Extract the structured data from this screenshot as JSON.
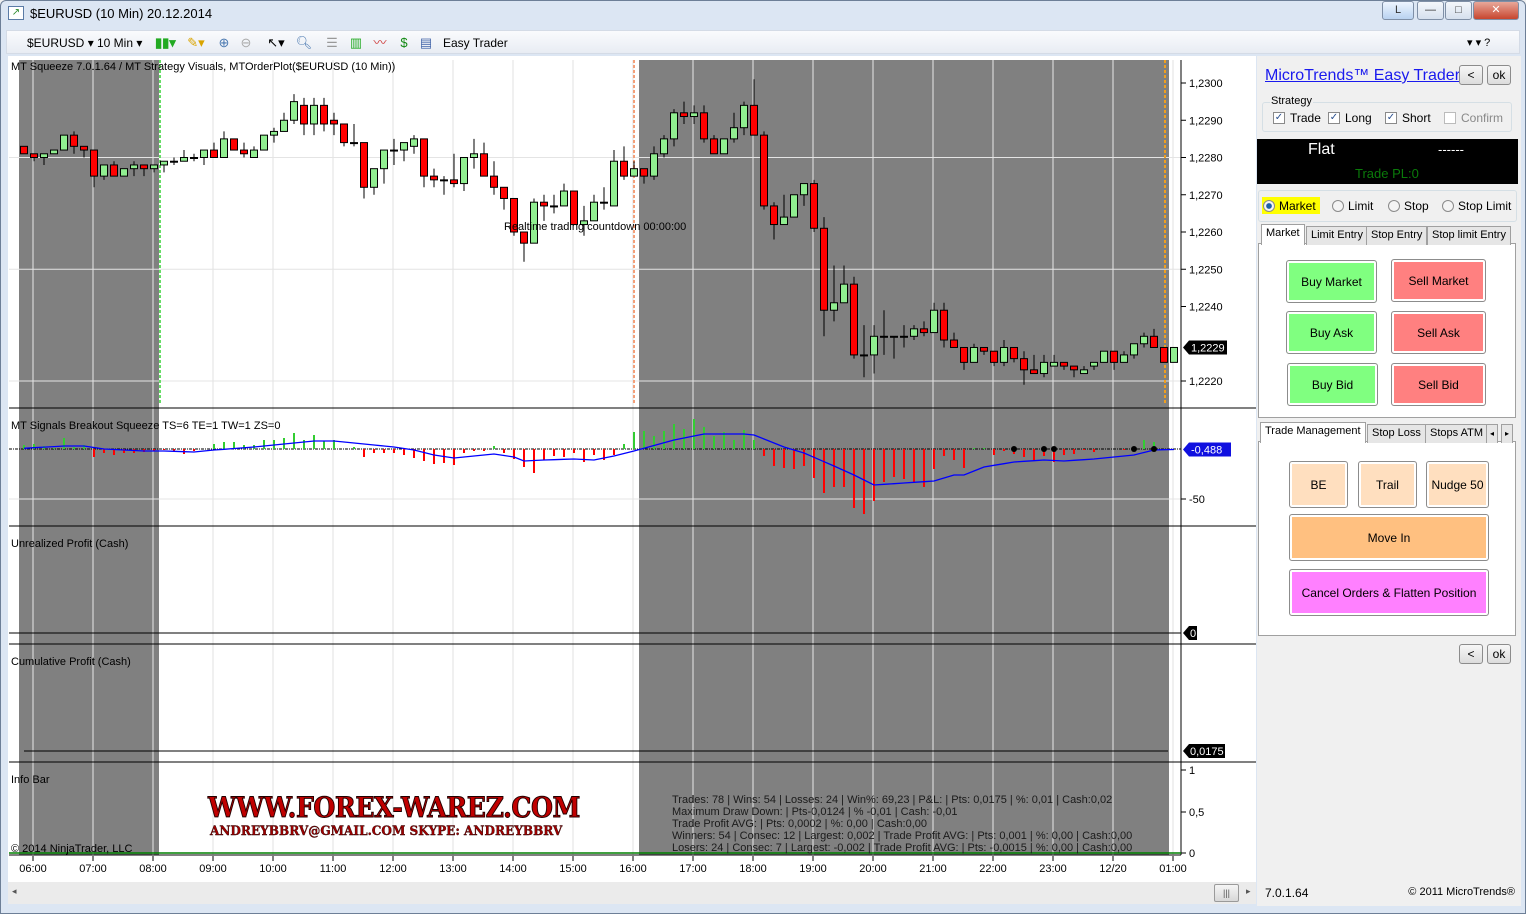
{
  "window": {
    "title": "$EURUSD (10 Min)  20.12.2014",
    "btn_l": "L",
    "minimize": "—",
    "maximize": "□",
    "close": "✕"
  },
  "toolbar": {
    "instrument": "$EURUSD",
    "interval": "10 Min",
    "easy_trader": "Easy Trader",
    "right_icons": "▾  ▾  ?"
  },
  "chart": {
    "price_title": "MT Squeeze 7.0.1.64 / MT Strategy Visuals, MTOrderPlot($EURUSD (10 Min))",
    "realtime_text": "Realtime trading countdown 00:00:00",
    "indicator_title": "MT Signals Breakout Squeeze TS=6 TE=1 TW=1 ZS=0",
    "unrealized_title": "Unrealized Profit (Cash)",
    "cumulative_title": "Cumulative Profit (Cash)",
    "info_title": "Info Bar",
    "copyright": "© 2014 NinjaTrader, LLC",
    "price_axis": [
      "1,2300",
      "1,2290",
      "1,2280",
      "1,2270",
      "1,2260",
      "1,2250",
      "1,2240",
      "1,2220"
    ],
    "price_marker": "1,2229",
    "indicator_marker": "-0,488",
    "indicator_axis": "-50",
    "unrealized_marker": "0",
    "cumulative_marker": "0,0175",
    "info_axis": [
      "1",
      "0,5",
      "0"
    ],
    "time_labels": [
      "06:00",
      "07:00",
      "08:00",
      "09:00",
      "10:00",
      "11:00",
      "12:00",
      "13:00",
      "14:00",
      "15:00",
      "16:00",
      "17:00",
      "18:00",
      "19:00",
      "20:00",
      "21:00",
      "22:00",
      "23:00",
      "12/20",
      "01:00"
    ],
    "stats": [
      "Trades: 78 | Wins: 54 | Losses: 24 | Win%: 69,23 | P&L: | Pts: 0,0175 | %: 0,01 | Cash:0,02",
      "Maximum Draw Down: | Pts-0,0124 | % -0,01 | Cash: -0,01",
      "Trade Profit AVG: | Pts: 0,0002 | %: 0,00 | Cash:0,00",
      "Winners: 54 | Consec: 12 | Largest: 0,002 | Trade Profit AVG: | Pts: 0,001 | %: 0,00 | Cash:0,00",
      "Losers: 24 | Consec: 7 | Largest: -0,002 | Trade Profit AVG: | Pts: -0,0015 | %: 0,00 | Cash:0,00"
    ],
    "watermark": [
      "WWW.FOREX-WAREZ.COM",
      "ANDREYBBRV@GMAIL.COM  SKYPE: ANDREYBBRV"
    ],
    "colors": {
      "up": "#90ee90",
      "down": "#ff0000",
      "session_shade": "#808080",
      "hist_up": "#32cd32",
      "hist_down": "#ff0000",
      "signal_line": "#0000ff"
    }
  },
  "chart_data": {
    "type": "candlestick",
    "instrument": "$EURUSD",
    "interval": "10 Min",
    "first_bar_time": "05:50",
    "ylim": [
      1.2213,
      1.2306
    ],
    "ohlc": [
      [
        1.2283,
        1.2283,
        1.2281,
        1.2281
      ],
      [
        1.2281,
        1.2281,
        1.2279,
        1.228
      ],
      [
        1.228,
        1.2281,
        1.2278,
        1.2281
      ],
      [
        1.2281,
        1.2282,
        1.2281,
        1.2282
      ],
      [
        1.2282,
        1.2286,
        1.2282,
        1.2286
      ],
      [
        1.2286,
        1.2287,
        1.2281,
        1.2283
      ],
      [
        1.2283,
        1.2283,
        1.228,
        1.2282
      ],
      [
        1.2282,
        1.2282,
        1.2272,
        1.2275
      ],
      [
        1.2275,
        1.2278,
        1.2274,
        1.2278
      ],
      [
        1.2278,
        1.2279,
        1.2275,
        1.2275
      ],
      [
        1.2275,
        1.2277,
        1.2275,
        1.2277
      ],
      [
        1.2277,
        1.2279,
        1.2275,
        1.2278
      ],
      [
        1.2278,
        1.2278,
        1.2275,
        1.2277
      ],
      [
        1.2277,
        1.2278,
        1.2276,
        1.2278
      ],
      [
        1.2278,
        1.2279,
        1.2276,
        1.2279
      ],
      [
        1.2279,
        1.228,
        1.2278,
        1.2279
      ],
      [
        1.2279,
        1.2282,
        1.2279,
        1.228
      ],
      [
        1.228,
        1.2281,
        1.2279,
        1.228
      ],
      [
        1.228,
        1.2282,
        1.2278,
        1.2282
      ],
      [
        1.2282,
        1.2284,
        1.228,
        1.228
      ],
      [
        1.228,
        1.2287,
        1.228,
        1.2285
      ],
      [
        1.2285,
        1.2285,
        1.2282,
        1.2282
      ],
      [
        1.2282,
        1.2284,
        1.228,
        1.2281
      ],
      [
        1.228,
        1.2283,
        1.228,
        1.2282
      ],
      [
        1.2282,
        1.2286,
        1.2282,
        1.2286
      ],
      [
        1.2286,
        1.2288,
        1.2284,
        1.2287
      ],
      [
        1.2287,
        1.2292,
        1.2287,
        1.229
      ],
      [
        1.229,
        1.2297,
        1.2289,
        1.2295
      ],
      [
        1.2294,
        1.2296,
        1.2286,
        1.2289
      ],
      [
        1.2289,
        1.2296,
        1.2286,
        1.2294
      ],
      [
        1.2294,
        1.2296,
        1.2287,
        1.2289
      ],
      [
        1.229,
        1.2292,
        1.2286,
        1.2289
      ],
      [
        1.2289,
        1.2289,
        1.2283,
        1.2284
      ],
      [
        1.2284,
        1.2289,
        1.2283,
        1.2284
      ],
      [
        1.2284,
        1.2284,
        1.2269,
        1.2272
      ],
      [
        1.2272,
        1.2277,
        1.227,
        1.2277
      ],
      [
        1.2277,
        1.2282,
        1.2273,
        1.2282
      ],
      [
        1.2282,
        1.2285,
        1.2278,
        1.2282
      ],
      [
        1.2282,
        1.2284,
        1.2279,
        1.2284
      ],
      [
        1.2283,
        1.2286,
        1.2281,
        1.2285
      ],
      [
        1.2285,
        1.2285,
        1.2272,
        1.2275
      ],
      [
        1.2275,
        1.2277,
        1.2272,
        1.2274
      ],
      [
        1.2274,
        1.2275,
        1.227,
        1.2274
      ],
      [
        1.2274,
        1.2281,
        1.2272,
        1.2273
      ],
      [
        1.2273,
        1.228,
        1.2271,
        1.228
      ],
      [
        1.228,
        1.2285,
        1.2277,
        1.2281
      ],
      [
        1.2281,
        1.2284,
        1.2275,
        1.2275
      ],
      [
        1.2275,
        1.2279,
        1.227,
        1.2272
      ],
      [
        1.2272,
        1.2272,
        1.2266,
        1.2269
      ],
      [
        1.2269,
        1.2269,
        1.2259,
        1.226
      ],
      [
        1.226,
        1.226,
        1.2252,
        1.2257
      ],
      [
        1.2257,
        1.2269,
        1.2257,
        1.2268
      ],
      [
        1.2268,
        1.227,
        1.2263,
        1.2267
      ],
      [
        1.2267,
        1.227,
        1.2265,
        1.2267
      ],
      [
        1.2267,
        1.2273,
        1.2267,
        1.2271
      ],
      [
        1.2271,
        1.2271,
        1.2262,
        1.2262
      ],
      [
        1.2262,
        1.2267,
        1.2259,
        1.2263
      ],
      [
        1.2263,
        1.227,
        1.2263,
        1.2268
      ],
      [
        1.2268,
        1.2272,
        1.2266,
        1.2268
      ],
      [
        1.2267,
        1.2282,
        1.2267,
        1.2279
      ],
      [
        1.2279,
        1.2283,
        1.2274,
        1.2275
      ],
      [
        1.2275,
        1.2279,
        1.2275,
        1.2277
      ],
      [
        1.2277,
        1.2277,
        1.2273,
        1.2275
      ],
      [
        1.2275,
        1.2283,
        1.2274,
        1.2281
      ],
      [
        1.2281,
        1.2286,
        1.228,
        1.2285
      ],
      [
        1.2285,
        1.2293,
        1.2283,
        1.2292
      ],
      [
        1.2292,
        1.2295,
        1.2289,
        1.2291
      ],
      [
        1.2291,
        1.2294,
        1.2289,
        1.2292
      ],
      [
        1.2292,
        1.2294,
        1.2284,
        1.2285
      ],
      [
        1.2285,
        1.2286,
        1.2281,
        1.2281
      ],
      [
        1.2281,
        1.2285,
        1.2281,
        1.2285
      ],
      [
        1.2285,
        1.2292,
        1.2284,
        1.2288
      ],
      [
        1.2288,
        1.2295,
        1.2286,
        1.2294
      ],
      [
        1.2294,
        1.2301,
        1.2286,
        1.2286
      ],
      [
        1.2286,
        1.2287,
        1.2266,
        1.2267
      ],
      [
        1.2267,
        1.2268,
        1.2258,
        1.2262
      ],
      [
        1.2262,
        1.227,
        1.2262,
        1.2264
      ],
      [
        1.2264,
        1.227,
        1.2264,
        1.227
      ],
      [
        1.227,
        1.2273,
        1.2267,
        1.2273
      ],
      [
        1.2273,
        1.2274,
        1.226,
        1.2261
      ],
      [
        1.2261,
        1.2264,
        1.2232,
        1.2239
      ],
      [
        1.2239,
        1.2251,
        1.2236,
        1.2241
      ],
      [
        1.2241,
        1.2251,
        1.2241,
        1.2246
      ],
      [
        1.2246,
        1.2248,
        1.2226,
        1.2227
      ],
      [
        1.2227,
        1.2235,
        1.2221,
        1.2227
      ],
      [
        1.2227,
        1.2235,
        1.2222,
        1.2232
      ],
      [
        1.2232,
        1.2239,
        1.2227,
        1.2232
      ],
      [
        1.2232,
        1.2232,
        1.2226,
        1.2232
      ],
      [
        1.2232,
        1.2235,
        1.2229,
        1.2232
      ],
      [
        1.2232,
        1.2235,
        1.2231,
        1.2234
      ],
      [
        1.2234,
        1.2236,
        1.2232,
        1.2233
      ],
      [
        1.2233,
        1.2241,
        1.2233,
        1.2239
      ],
      [
        1.2239,
        1.2241,
        1.2229,
        1.2231
      ],
      [
        1.2231,
        1.2233,
        1.2229,
        1.2229
      ],
      [
        1.2229,
        1.2229,
        1.2223,
        1.2225
      ],
      [
        1.2225,
        1.223,
        1.2225,
        1.2229
      ],
      [
        1.2229,
        1.2229,
        1.2227,
        1.2228
      ],
      [
        1.2228,
        1.2228,
        1.2224,
        1.2225
      ],
      [
        1.2225,
        1.2231,
        1.2224,
        1.2229
      ],
      [
        1.2229,
        1.2229,
        1.2225,
        1.2226
      ],
      [
        1.2226,
        1.2228,
        1.2219,
        1.2223
      ],
      [
        1.2223,
        1.2227,
        1.2222,
        1.2222
      ],
      [
        1.2222,
        1.2227,
        1.2221,
        1.2225
      ],
      [
        1.2224,
        1.2227,
        1.2224,
        1.2225
      ],
      [
        1.2225,
        1.2225,
        1.2223,
        1.2224
      ],
      [
        1.2224,
        1.2224,
        1.2221,
        1.2223
      ],
      [
        1.2222,
        1.2224,
        1.2222,
        1.2223
      ],
      [
        1.2224,
        1.2225,
        1.2223,
        1.2225
      ],
      [
        1.2225,
        1.2228,
        1.2225,
        1.2228
      ],
      [
        1.2228,
        1.2228,
        1.2223,
        1.2225
      ],
      [
        1.2225,
        1.2228,
        1.2225,
        1.2227
      ],
      [
        1.2227,
        1.223,
        1.2226,
        1.223
      ],
      [
        1.223,
        1.2233,
        1.2229,
        1.2232
      ],
      [
        1.2232,
        1.2234,
        1.2229,
        1.2229
      ],
      [
        1.2229,
        1.2229,
        1.2225,
        1.2225
      ],
      [
        1.2225,
        1.2229,
        1.2225,
        1.2229
      ]
    ],
    "squeeze_histogram": [
      4,
      5,
      3,
      1,
      11,
      2,
      4,
      -8,
      -4,
      -6,
      -4,
      -4,
      -3,
      -2,
      -1,
      -2,
      -5,
      -2,
      0,
      5,
      7,
      7,
      4,
      4,
      9,
      9,
      11,
      16,
      9,
      14,
      8,
      9,
      0,
      2,
      -8,
      -4,
      -4,
      -4,
      -6,
      -9,
      -12,
      -15,
      -14,
      -16,
      -4,
      -2,
      -2,
      3,
      -4,
      -10,
      -18,
      -24,
      -11,
      -7,
      -8,
      -4,
      -13,
      -6,
      -11,
      -6,
      5,
      17,
      18,
      13,
      18,
      25,
      20,
      30,
      22,
      13,
      17,
      9,
      19,
      9,
      -7,
      -17,
      -19,
      -20,
      -17,
      -29,
      -44,
      -38,
      -38,
      -59,
      -65,
      -52,
      -33,
      -28,
      -30,
      -34,
      -38,
      -20,
      -7,
      -11,
      -19,
      1,
      1,
      -6,
      -2,
      -5,
      -8,
      -11,
      -7,
      -13,
      -6,
      -5,
      -1,
      -3,
      0,
      0,
      -1,
      0,
      9,
      7,
      0,
      0
    ],
    "signal_line": [
      0.7,
      1.3,
      1.9,
      2.4,
      3,
      3,
      3,
      1.5,
      0,
      -0.5,
      -1,
      -1.5,
      -2,
      -2,
      -2,
      -2.3,
      -2.7,
      -3,
      -2,
      -1,
      -0.3,
      0.5,
      1.2,
      2,
      3,
      4,
      5,
      6,
      7,
      8,
      8,
      8,
      7,
      6,
      5,
      4,
      3,
      2,
      0.5,
      -1,
      -3.5,
      -6,
      -7.5,
      -9,
      -8,
      -7,
      -6,
      -5,
      -6.5,
      -8,
      -12,
      -11.5,
      -11,
      -10.7,
      -10.3,
      -10,
      -10.5,
      -11,
      -9,
      -7,
      -4.5,
      -2,
      0.8,
      3.5,
      6.3,
      9,
      11,
      13,
      15,
      15,
      15,
      15,
      15,
      14,
      10,
      6,
      2,
      -1,
      -4,
      -8.3,
      -12.7,
      -17,
      -21.5,
      -26,
      -31,
      -36,
      -35.3,
      -34.7,
      -34,
      -33.3,
      -32.7,
      -32,
      -29,
      -26,
      -26,
      -22,
      -18,
      -16.3,
      -14.7,
      -13,
      -12.3,
      -11.7,
      -11,
      -11.5,
      -12,
      -11.3,
      -10.7,
      -10,
      -9,
      -8,
      -7,
      -6,
      -3.5,
      -1,
      -0.7,
      -0.5
    ],
    "signal_dots_bar_index": [
      99,
      102,
      103,
      111,
      113
    ],
    "indicator_ylim": [
      -70,
      30
    ],
    "shaded_sessions_bar_index": [
      [
        0,
        13
      ],
      [
        62,
        114
      ]
    ],
    "markers_bar_index": {
      "green_dashed": 13,
      "salmon_dashed": 61,
      "orange_dashed": 114
    }
  },
  "panel": {
    "title": "MicroTrends™ Easy Trader",
    "back": "<",
    "ok": "ok",
    "strategy_label": "Strategy",
    "checkboxes": [
      {
        "label": "Trade",
        "checked": true
      },
      {
        "label": "Long",
        "checked": true
      },
      {
        "label": "Short",
        "checked": true
      },
      {
        "label": "Confirm",
        "checked": false
      }
    ],
    "position": "Flat",
    "position_detail": "------",
    "trade_pl": "Trade PL:0",
    "order_types": [
      {
        "label": "Market",
        "selected": true
      },
      {
        "label": "Limit",
        "selected": false
      },
      {
        "label": "Stop",
        "selected": false
      },
      {
        "label": "Stop Limit",
        "selected": false
      }
    ],
    "entry_tabs": [
      "Market",
      "Limit Entry",
      "Stop Entry",
      "Stop limit Entry"
    ],
    "buy_buttons": [
      "Buy Market",
      "Buy Ask",
      "Buy Bid"
    ],
    "sell_buttons": [
      "Sell Market",
      "Sell Ask",
      "Sell Bid"
    ],
    "mgmt_tabs": [
      "Trade Management",
      "Stop Loss",
      "Stops ATM"
    ],
    "mgmt_buttons": {
      "be": "BE",
      "trail": "Trail",
      "nudge": "Nudge 50",
      "move_in": "Move In",
      "cancel": "Cancel Orders & Flatten Position"
    },
    "version": "7.0.1.64",
    "copyright": "© 2011 MicroTrends®"
  }
}
